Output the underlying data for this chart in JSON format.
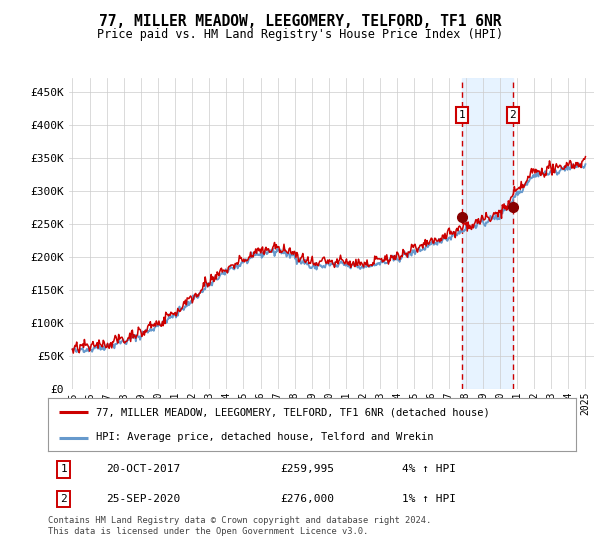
{
  "title": "77, MILLER MEADOW, LEEGOMERY, TELFORD, TF1 6NR",
  "subtitle": "Price paid vs. HM Land Registry's House Price Index (HPI)",
  "ylabel_ticks": [
    "£0",
    "£50K",
    "£100K",
    "£150K",
    "£200K",
    "£250K",
    "£300K",
    "£350K",
    "£400K",
    "£450K"
  ],
  "ylim": [
    0,
    470000
  ],
  "yticks": [
    0,
    50000,
    100000,
    150000,
    200000,
    250000,
    300000,
    350000,
    400000,
    450000
  ],
  "xlim_start": 1994.8,
  "xlim_end": 2025.5,
  "hpi_color": "#6699cc",
  "sale_color": "#cc0000",
  "annotation_box_color": "#cc0000",
  "annotation_shade_color": "#ddeeff",
  "sale1_x": 2017.8,
  "sale1_y": 259995,
  "sale2_x": 2020.75,
  "sale2_y": 276000,
  "legend_sale_label": "77, MILLER MEADOW, LEEGOMERY, TELFORD, TF1 6NR (detached house)",
  "legend_hpi_label": "HPI: Average price, detached house, Telford and Wrekin",
  "background_color": "#ffffff",
  "grid_color": "#cccccc",
  "footer": "Contains HM Land Registry data © Crown copyright and database right 2024.\nThis data is licensed under the Open Government Licence v3.0."
}
